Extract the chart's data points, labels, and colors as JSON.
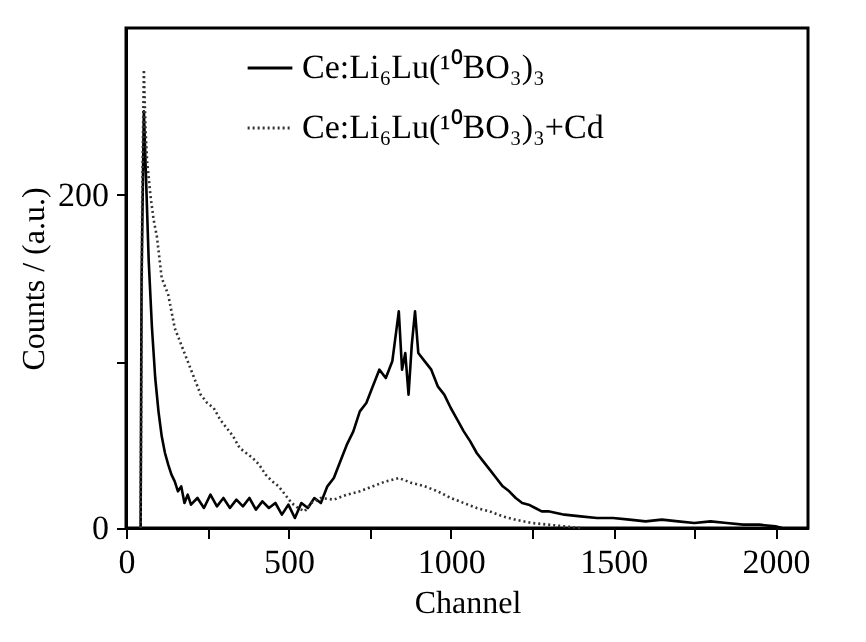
{
  "chart_data": {
    "type": "line",
    "xlabel": "Channel",
    "ylabel": "Counts / (a.u.)",
    "xlim": [
      0,
      2100
    ],
    "xticks": [
      0,
      {
        "value": 250,
        "label": null
      },
      500,
      {
        "value": 750,
        "label": null
      },
      1000,
      {
        "value": 1250,
        "label": null
      },
      1500,
      {
        "value": 1750,
        "label": null
      },
      2000
    ],
    "ylim": [
      0,
      300
    ],
    "yticks": [
      0,
      {
        "value": 100,
        "label": null
      },
      200
    ],
    "grid": false,
    "legend": "top",
    "marker": "none",
    "series": [
      {
        "name": "Ce:Li₆Lu(¹⁰BO₃)₃",
        "color": "#000000",
        "line_style": "solid",
        "x": [
          45,
          48,
          55,
          60,
          70,
          80,
          90,
          100,
          110,
          120,
          130,
          140,
          150,
          160,
          170,
          180,
          190,
          200,
          220,
          240,
          260,
          280,
          300,
          320,
          340,
          360,
          380,
          400,
          420,
          440,
          460,
          480,
          500,
          520,
          540,
          560,
          580,
          600,
          620,
          640,
          660,
          680,
          700,
          720,
          740,
          760,
          780,
          800,
          820,
          840,
          850,
          860,
          870,
          880,
          890,
          900,
          920,
          940,
          960,
          980,
          1000,
          1020,
          1040,
          1060,
          1080,
          1100,
          1120,
          1140,
          1160,
          1180,
          1200,
          1220,
          1240,
          1260,
          1280,
          1300,
          1350,
          1400,
          1450,
          1500,
          1550,
          1600,
          1650,
          1700,
          1750,
          1800,
          1850,
          1900,
          1950,
          2000,
          2020
        ],
        "values": [
          0,
          150,
          250,
          220,
          160,
          120,
          90,
          70,
          55,
          45,
          38,
          32,
          28,
          22,
          25,
          15,
          20,
          14,
          18,
          12,
          20,
          13,
          18,
          12,
          17,
          13,
          18,
          11,
          16,
          12,
          15,
          8,
          14,
          6,
          15,
          12,
          18,
          15,
          25,
          30,
          40,
          50,
          58,
          70,
          75,
          85,
          95,
          90,
          100,
          130,
          95,
          105,
          80,
          110,
          130,
          105,
          100,
          95,
          85,
          80,
          72,
          65,
          58,
          52,
          45,
          40,
          35,
          30,
          25,
          22,
          18,
          15,
          14,
          12,
          10,
          10,
          8,
          7,
          6,
          6,
          5,
          4,
          5,
          4,
          3,
          4,
          3,
          2,
          2,
          1,
          0
        ]
      },
      {
        "name": "Ce:Li₆Lu(¹⁰BO₃)₃+Cd",
        "color": "#333333",
        "line_style": "dotted",
        "x": [
          45,
          50,
          55,
          60,
          65,
          75,
          85,
          95,
          110,
          130,
          150,
          170,
          190,
          210,
          230,
          250,
          270,
          290,
          310,
          330,
          350,
          370,
          390,
          410,
          430,
          450,
          470,
          490,
          510,
          530,
          550,
          570,
          600,
          640,
          680,
          720,
          760,
          800,
          840,
          880,
          920,
          960,
          1000,
          1040,
          1080,
          1120,
          1160,
          1200,
          1250,
          1300,
          1350,
          1400
        ],
        "values": [
          0,
          200,
          275,
          240,
          220,
          200,
          185,
          175,
          150,
          140,
          120,
          110,
          100,
          90,
          80,
          75,
          72,
          65,
          60,
          55,
          48,
          45,
          42,
          38,
          32,
          28,
          25,
          20,
          15,
          12,
          10,
          15,
          18,
          17,
          20,
          22,
          25,
          28,
          30,
          27,
          25,
          22,
          18,
          15,
          12,
          10,
          7,
          5,
          3,
          2,
          1,
          0
        ]
      }
    ]
  }
}
